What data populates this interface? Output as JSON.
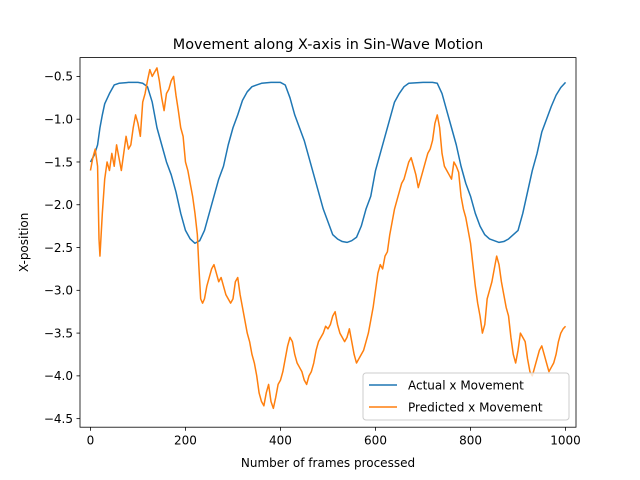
{
  "chart_data": {
    "type": "line",
    "title": "Movement along X-axis in Sin-Wave Motion",
    "xlabel": "Number of frames processed",
    "ylabel": "X-position",
    "xlim": [
      -22,
      1022
    ],
    "ylim": [
      -4.6,
      -0.28
    ],
    "xticks": [
      0,
      200,
      400,
      600,
      800,
      1000
    ],
    "yticks": [
      -0.5,
      -1.0,
      -1.5,
      -2.0,
      -2.5,
      -3.0,
      -3.5,
      -4.0,
      -4.5
    ],
    "ytick_labels": [
      "−0.5",
      "−1.0",
      "−1.5",
      "−2.0",
      "−2.5",
      "−3.0",
      "−3.5",
      "−4.0",
      "−4.5"
    ],
    "grid": false,
    "legend_position": "lower-right",
    "series": [
      {
        "name": "Actual x Movement",
        "color": "#1f77b4",
        "points": [
          [
            0,
            -1.5
          ],
          [
            8,
            -1.42
          ],
          [
            15,
            -1.3
          ],
          [
            20,
            -1.1
          ],
          [
            25,
            -0.95
          ],
          [
            30,
            -0.82
          ],
          [
            40,
            -0.7
          ],
          [
            50,
            -0.6
          ],
          [
            60,
            -0.58
          ],
          [
            80,
            -0.57
          ],
          [
            100,
            -0.57
          ],
          [
            110,
            -0.58
          ],
          [
            120,
            -0.62
          ],
          [
            130,
            -0.8
          ],
          [
            140,
            -1.1
          ],
          [
            150,
            -1.3
          ],
          [
            160,
            -1.5
          ],
          [
            170,
            -1.65
          ],
          [
            180,
            -1.85
          ],
          [
            190,
            -2.1
          ],
          [
            200,
            -2.3
          ],
          [
            210,
            -2.4
          ],
          [
            220,
            -2.45
          ],
          [
            230,
            -2.42
          ],
          [
            240,
            -2.3
          ],
          [
            250,
            -2.1
          ],
          [
            260,
            -1.9
          ],
          [
            270,
            -1.7
          ],
          [
            280,
            -1.55
          ],
          [
            290,
            -1.3
          ],
          [
            300,
            -1.1
          ],
          [
            310,
            -0.95
          ],
          [
            320,
            -0.78
          ],
          [
            330,
            -0.68
          ],
          [
            340,
            -0.62
          ],
          [
            350,
            -0.6
          ],
          [
            360,
            -0.58
          ],
          [
            380,
            -0.57
          ],
          [
            400,
            -0.57
          ],
          [
            410,
            -0.6
          ],
          [
            420,
            -0.75
          ],
          [
            430,
            -0.95
          ],
          [
            440,
            -1.1
          ],
          [
            450,
            -1.25
          ],
          [
            460,
            -1.45
          ],
          [
            470,
            -1.65
          ],
          [
            480,
            -1.85
          ],
          [
            490,
            -2.05
          ],
          [
            500,
            -2.2
          ],
          [
            510,
            -2.35
          ],
          [
            520,
            -2.4
          ],
          [
            530,
            -2.43
          ],
          [
            540,
            -2.44
          ],
          [
            550,
            -2.42
          ],
          [
            560,
            -2.38
          ],
          [
            570,
            -2.25
          ],
          [
            580,
            -2.05
          ],
          [
            590,
            -1.9
          ],
          [
            600,
            -1.6
          ],
          [
            610,
            -1.4
          ],
          [
            620,
            -1.2
          ],
          [
            630,
            -1.0
          ],
          [
            640,
            -0.8
          ],
          [
            650,
            -0.7
          ],
          [
            660,
            -0.62
          ],
          [
            670,
            -0.58
          ],
          [
            700,
            -0.57
          ],
          [
            720,
            -0.57
          ],
          [
            730,
            -0.58
          ],
          [
            740,
            -0.7
          ],
          [
            750,
            -0.9
          ],
          [
            760,
            -1.1
          ],
          [
            770,
            -1.3
          ],
          [
            780,
            -1.55
          ],
          [
            790,
            -1.75
          ],
          [
            800,
            -1.9
          ],
          [
            810,
            -2.1
          ],
          [
            820,
            -2.25
          ],
          [
            830,
            -2.35
          ],
          [
            840,
            -2.4
          ],
          [
            860,
            -2.44
          ],
          [
            870,
            -2.43
          ],
          [
            880,
            -2.4
          ],
          [
            890,
            -2.35
          ],
          [
            900,
            -2.3
          ],
          [
            910,
            -2.1
          ],
          [
            920,
            -1.85
          ],
          [
            930,
            -1.6
          ],
          [
            940,
            -1.4
          ],
          [
            950,
            -1.15
          ],
          [
            960,
            -1.0
          ],
          [
            970,
            -0.85
          ],
          [
            980,
            -0.72
          ],
          [
            990,
            -0.63
          ],
          [
            1000,
            -0.57
          ]
        ]
      },
      {
        "name": "Predicted x Movement",
        "color": "#ff7f0e",
        "points": [
          [
            0,
            -1.6
          ],
          [
            5,
            -1.45
          ],
          [
            10,
            -1.35
          ],
          [
            15,
            -1.55
          ],
          [
            18,
            -2.4
          ],
          [
            20,
            -2.6
          ],
          [
            25,
            -2.1
          ],
          [
            30,
            -1.7
          ],
          [
            35,
            -1.5
          ],
          [
            40,
            -1.6
          ],
          [
            45,
            -1.4
          ],
          [
            50,
            -1.55
          ],
          [
            55,
            -1.3
          ],
          [
            60,
            -1.45
          ],
          [
            65,
            -1.6
          ],
          [
            70,
            -1.4
          ],
          [
            75,
            -1.2
          ],
          [
            80,
            -1.35
          ],
          [
            85,
            -1.3
          ],
          [
            90,
            -1.1
          ],
          [
            95,
            -0.95
          ],
          [
            100,
            -1.05
          ],
          [
            105,
            -1.2
          ],
          [
            110,
            -0.8
          ],
          [
            115,
            -0.7
          ],
          [
            120,
            -0.55
          ],
          [
            125,
            -0.42
          ],
          [
            130,
            -0.5
          ],
          [
            135,
            -0.45
          ],
          [
            140,
            -0.4
          ],
          [
            145,
            -0.55
          ],
          [
            150,
            -0.75
          ],
          [
            155,
            -0.9
          ],
          [
            160,
            -0.7
          ],
          [
            165,
            -0.65
          ],
          [
            170,
            -0.55
          ],
          [
            175,
            -0.5
          ],
          [
            180,
            -0.72
          ],
          [
            185,
            -0.9
          ],
          [
            190,
            -1.1
          ],
          [
            195,
            -1.2
          ],
          [
            200,
            -1.5
          ],
          [
            205,
            -1.6
          ],
          [
            210,
            -1.75
          ],
          [
            215,
            -1.9
          ],
          [
            220,
            -2.1
          ],
          [
            225,
            -2.35
          ],
          [
            228,
            -2.7
          ],
          [
            232,
            -3.1
          ],
          [
            236,
            -3.15
          ],
          [
            240,
            -3.1
          ],
          [
            245,
            -2.95
          ],
          [
            250,
            -2.85
          ],
          [
            255,
            -2.75
          ],
          [
            260,
            -2.7
          ],
          [
            265,
            -2.8
          ],
          [
            270,
            -2.9
          ],
          [
            275,
            -2.85
          ],
          [
            280,
            -2.95
          ],
          [
            285,
            -3.05
          ],
          [
            290,
            -3.1
          ],
          [
            295,
            -3.15
          ],
          [
            300,
            -3.1
          ],
          [
            305,
            -2.9
          ],
          [
            310,
            -2.85
          ],
          [
            315,
            -3.05
          ],
          [
            320,
            -3.2
          ],
          [
            325,
            -3.35
          ],
          [
            330,
            -3.5
          ],
          [
            335,
            -3.6
          ],
          [
            340,
            -3.75
          ],
          [
            345,
            -3.85
          ],
          [
            350,
            -4.0
          ],
          [
            355,
            -4.2
          ],
          [
            360,
            -4.3
          ],
          [
            365,
            -4.35
          ],
          [
            370,
            -4.2
          ],
          [
            375,
            -4.1
          ],
          [
            380,
            -4.3
          ],
          [
            385,
            -4.38
          ],
          [
            390,
            -4.25
          ],
          [
            395,
            -4.1
          ],
          [
            400,
            -4.05
          ],
          [
            405,
            -3.95
          ],
          [
            410,
            -3.8
          ],
          [
            415,
            -3.65
          ],
          [
            420,
            -3.55
          ],
          [
            425,
            -3.6
          ],
          [
            430,
            -3.75
          ],
          [
            435,
            -3.85
          ],
          [
            440,
            -3.9
          ],
          [
            445,
            -3.95
          ],
          [
            450,
            -4.05
          ],
          [
            455,
            -4.1
          ],
          [
            460,
            -4.0
          ],
          [
            465,
            -3.95
          ],
          [
            470,
            -3.85
          ],
          [
            475,
            -3.7
          ],
          [
            480,
            -3.6
          ],
          [
            485,
            -3.55
          ],
          [
            490,
            -3.5
          ],
          [
            495,
            -3.42
          ],
          [
            500,
            -3.45
          ],
          [
            505,
            -3.4
          ],
          [
            510,
            -3.3
          ],
          [
            515,
            -3.25
          ],
          [
            520,
            -3.4
          ],
          [
            525,
            -3.5
          ],
          [
            530,
            -3.55
          ],
          [
            535,
            -3.6
          ],
          [
            540,
            -3.55
          ],
          [
            545,
            -3.45
          ],
          [
            550,
            -3.6
          ],
          [
            555,
            -3.75
          ],
          [
            560,
            -3.85
          ],
          [
            565,
            -3.8
          ],
          [
            570,
            -3.75
          ],
          [
            575,
            -3.7
          ],
          [
            580,
            -3.6
          ],
          [
            585,
            -3.5
          ],
          [
            590,
            -3.35
          ],
          [
            595,
            -3.2
          ],
          [
            600,
            -3.0
          ],
          [
            605,
            -2.8
          ],
          [
            610,
            -2.7
          ],
          [
            615,
            -2.75
          ],
          [
            620,
            -2.6
          ],
          [
            625,
            -2.55
          ],
          [
            630,
            -2.35
          ],
          [
            635,
            -2.2
          ],
          [
            640,
            -2.05
          ],
          [
            645,
            -1.95
          ],
          [
            650,
            -1.85
          ],
          [
            655,
            -1.75
          ],
          [
            660,
            -1.7
          ],
          [
            665,
            -1.6
          ],
          [
            670,
            -1.5
          ],
          [
            675,
            -1.45
          ],
          [
            680,
            -1.55
          ],
          [
            685,
            -1.65
          ],
          [
            690,
            -1.8
          ],
          [
            695,
            -1.7
          ],
          [
            700,
            -1.6
          ],
          [
            705,
            -1.5
          ],
          [
            710,
            -1.4
          ],
          [
            715,
            -1.35
          ],
          [
            720,
            -1.25
          ],
          [
            725,
            -1.05
          ],
          [
            730,
            -0.95
          ],
          [
            735,
            -1.1
          ],
          [
            740,
            -1.4
          ],
          [
            745,
            -1.55
          ],
          [
            750,
            -1.6
          ],
          [
            755,
            -1.65
          ],
          [
            760,
            -1.7
          ],
          [
            765,
            -1.5
          ],
          [
            770,
            -1.55
          ],
          [
            775,
            -1.62
          ],
          [
            780,
            -1.9
          ],
          [
            785,
            -2.05
          ],
          [
            790,
            -2.15
          ],
          [
            795,
            -2.3
          ],
          [
            800,
            -2.45
          ],
          [
            805,
            -2.7
          ],
          [
            810,
            -2.95
          ],
          [
            815,
            -3.15
          ],
          [
            820,
            -3.3
          ],
          [
            825,
            -3.5
          ],
          [
            830,
            -3.4
          ],
          [
            835,
            -3.1
          ],
          [
            840,
            -3.0
          ],
          [
            845,
            -2.9
          ],
          [
            850,
            -2.75
          ],
          [
            855,
            -2.6
          ],
          [
            860,
            -2.7
          ],
          [
            865,
            -2.9
          ],
          [
            870,
            -3.05
          ],
          [
            875,
            -3.2
          ],
          [
            880,
            -3.3
          ],
          [
            885,
            -3.55
          ],
          [
            890,
            -3.75
          ],
          [
            895,
            -3.85
          ],
          [
            900,
            -3.7
          ],
          [
            905,
            -3.5
          ],
          [
            910,
            -3.55
          ],
          [
            915,
            -3.6
          ],
          [
            920,
            -3.8
          ],
          [
            925,
            -3.95
          ],
          [
            930,
            -4.0
          ],
          [
            935,
            -3.9
          ],
          [
            940,
            -3.8
          ],
          [
            945,
            -3.7
          ],
          [
            950,
            -3.65
          ],
          [
            955,
            -3.75
          ],
          [
            960,
            -3.85
          ],
          [
            965,
            -3.95
          ],
          [
            970,
            -3.9
          ],
          [
            975,
            -3.85
          ],
          [
            980,
            -3.75
          ],
          [
            985,
            -3.6
          ],
          [
            990,
            -3.5
          ],
          [
            995,
            -3.45
          ],
          [
            1000,
            -3.42
          ]
        ]
      }
    ]
  }
}
